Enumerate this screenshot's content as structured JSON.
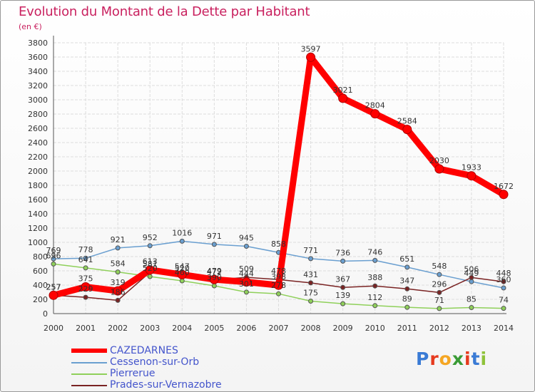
{
  "title": "Evolution du Montant de la Dette par Habitant",
  "subtitle": "(en €)",
  "logo": {
    "text": "Proxiti",
    "colors": [
      "#3a7bd5",
      "#e63a1e",
      "#f5a623",
      "#3a9b35",
      "#e63a1e",
      "#3a7bd5",
      "#8fc23a"
    ]
  },
  "chart_data": {
    "type": "line",
    "title": "Evolution du Montant de la Dette par Habitant",
    "ylabel": "(en €)",
    "x": [
      "2000",
      "2001",
      "2002",
      "2003",
      "2004",
      "2005",
      "2006",
      "2007",
      "2008",
      "2009",
      "2010",
      "2011",
      "2012",
      "2013",
      "2014"
    ],
    "ylim": [
      0,
      3800
    ],
    "yticks": [
      0,
      200,
      400,
      600,
      800,
      1000,
      1200,
      1400,
      1600,
      1800,
      2000,
      2200,
      2400,
      2600,
      2800,
      3000,
      3200,
      3400,
      3600,
      3800
    ],
    "grid": true,
    "legend": "bottom-left",
    "series": [
      {
        "name": "CAZEDARNES",
        "color": "#ff0000",
        "values": [
          257,
          375,
          319,
          613,
          547,
          479,
          444,
          398,
          3597,
          3021,
          2804,
          2584,
          2030,
          1933,
          1672
        ]
      },
      {
        "name": "Cessenon-sur-Orb",
        "color": "#6a9fd0",
        "values": [
          769,
          778,
          921,
          952,
          1016,
          971,
          945,
          858,
          771,
          736,
          746,
          651,
          548,
          449,
          360
        ]
      },
      {
        "name": "Pierrerue",
        "color": "#8fd05a",
        "values": [
          696,
          641,
          584,
          520,
          460,
          390,
          301,
          278,
          175,
          139,
          112,
          89,
          71,
          85,
          74
        ]
      },
      {
        "name": "Prades-sur-Vernazobre",
        "color": "#7a2323",
        "values": [
          257,
          229,
          186,
          581,
          520,
          472,
          509,
          478,
          431,
          367,
          388,
          347,
          296,
          506,
          448
        ]
      }
    ]
  }
}
